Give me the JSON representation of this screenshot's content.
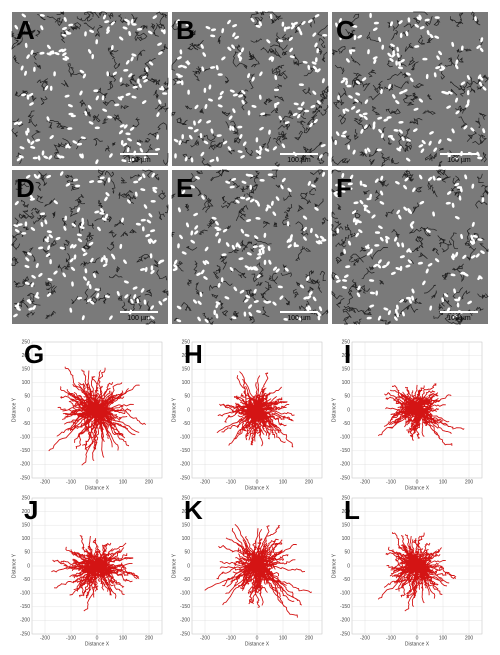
{
  "panels": [
    {
      "label": "A",
      "scale_bar": "100 µm"
    },
    {
      "label": "B",
      "scale_bar": "100 µm"
    },
    {
      "label": "C",
      "scale_bar": "100 µm"
    },
    {
      "label": "D",
      "scale_bar": "100 µm"
    },
    {
      "label": "E",
      "scale_bar": "100 µm"
    },
    {
      "label": "F",
      "scale_bar": "100 µm"
    }
  ],
  "plots": {
    "x_label": "Distance X",
    "y_label": "Distance Y",
    "xlim": [
      -250,
      250
    ],
    "ylim": [
      -250,
      250
    ],
    "xticks": [
      -200,
      -100,
      0,
      100,
      200
    ],
    "yticks": [
      -250,
      -200,
      -150,
      -100,
      -50,
      0,
      50,
      100,
      150,
      200,
      250
    ],
    "panels": [
      {
        "label": "G"
      },
      {
        "label": "H"
      },
      {
        "label": "I"
      },
      {
        "label": "J"
      },
      {
        "label": "K"
      },
      {
        "label": "L"
      }
    ]
  }
}
